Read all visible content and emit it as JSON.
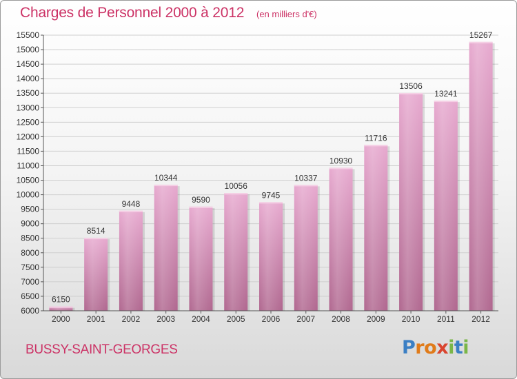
{
  "header": {
    "title": "Charges de Personnel 2000 à 2012",
    "subtitle": "(en milliers d'€)"
  },
  "footer": {
    "city": "BUSSY-SAINT-GEORGES",
    "logo_letters": [
      "P",
      "r",
      "o",
      "x",
      "i",
      "t",
      "i"
    ],
    "logo_colors": [
      "#3b7fc4",
      "#e07b1a",
      "#e07b1a",
      "#d9452f",
      "#7ab648",
      "#3b7fc4",
      "#7ab648"
    ]
  },
  "colors": {
    "bar_top": "#e7a9cf",
    "bar_bottom": "#b0678f",
    "grid": "#cfcfcf",
    "axis": "#555555",
    "text": "#333333",
    "accent": "#cc3366"
  },
  "chart_data": {
    "type": "bar",
    "title": "Charges de Personnel 2000 à 2012",
    "subtitle": "(en milliers d'€)",
    "xlabel": "",
    "ylabel": "",
    "categories": [
      "2000",
      "2001",
      "2002",
      "2003",
      "2004",
      "2005",
      "2006",
      "2007",
      "2008",
      "2009",
      "2010",
      "2011",
      "2012"
    ],
    "values": [
      6150,
      8514,
      9448,
      10344,
      9590,
      10056,
      9745,
      10337,
      10930,
      11716,
      13506,
      13241,
      15267
    ],
    "ylim": [
      6000,
      15500
    ],
    "yticks": [
      6000,
      6500,
      7000,
      7500,
      8000,
      8500,
      9000,
      9500,
      10000,
      10500,
      11000,
      11500,
      12000,
      12500,
      13000,
      13500,
      14000,
      14500,
      15000,
      15500
    ],
    "grid": true,
    "data_labels": true
  }
}
